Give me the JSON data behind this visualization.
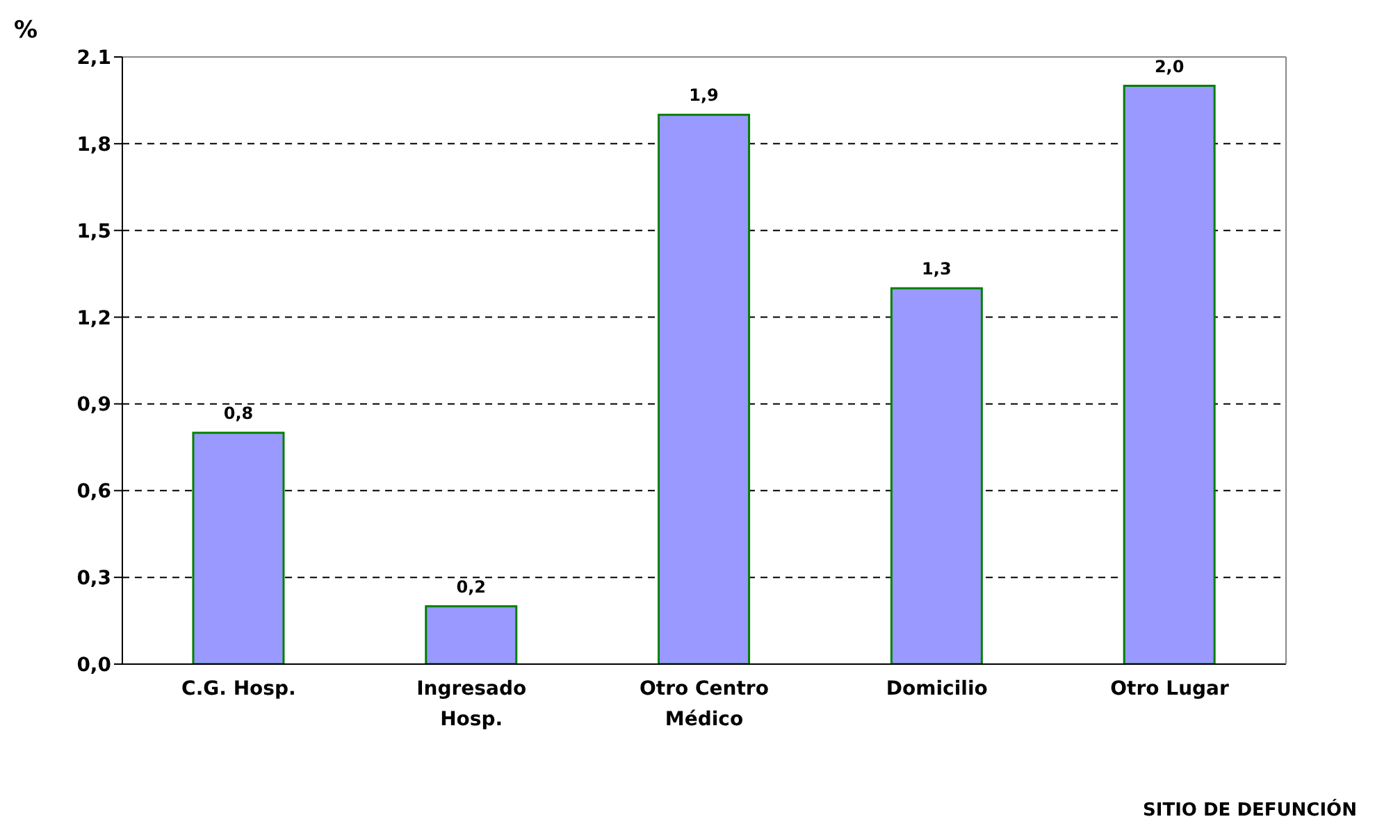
{
  "chart_data": {
    "type": "bar",
    "xlabel": "SITIO DE DEFUNCIÓN",
    "ylabel": "%",
    "categories": [
      "C.G. Hosp.",
      "Ingresado Hosp.",
      "Otro Centro Médico",
      "Domicilio",
      "Otro Lugar"
    ],
    "values": [
      0.8,
      0.2,
      1.9,
      1.3,
      2.0
    ],
    "value_labels": [
      "0,8",
      "0,2",
      "1,9",
      "1,3",
      "2,0"
    ],
    "color": "#9999ff",
    "ylim": [
      0,
      2.1
    ],
    "yticks": [
      {
        "value": 0,
        "label": "0,0"
      },
      {
        "value": 0.3,
        "label": "0,3"
      },
      {
        "value": 0.6,
        "label": "0,6"
      },
      {
        "value": 0.9,
        "label": "0,9"
      },
      {
        "value": 1.2,
        "label": "1,2"
      },
      {
        "value": 1.5,
        "label": "1,5"
      },
      {
        "value": 1.8,
        "label": "1,8"
      },
      {
        "value": 2.1,
        "label": "2,1"
      }
    ],
    "grid": "y"
  }
}
